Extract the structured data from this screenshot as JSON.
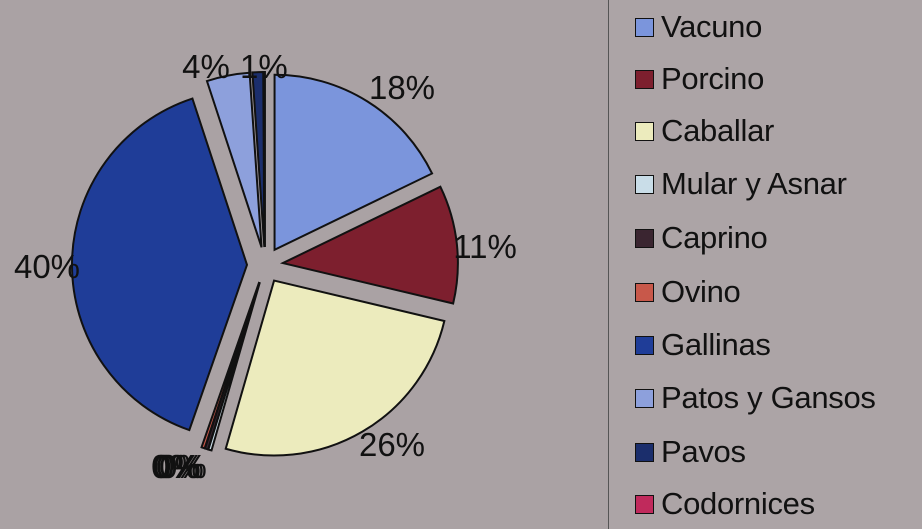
{
  "chart_data": {
    "type": "pie",
    "exploded": true,
    "legend_position": "right",
    "slices": [
      {
        "name": "Vacuno",
        "value": 18,
        "label": "18%",
        "color": "#7b95dc"
      },
      {
        "name": "Porcino",
        "value": 11,
        "label": "11%",
        "color": "#7d1f2e"
      },
      {
        "name": "Caballar",
        "value": 26,
        "label": "26%",
        "color": "#ecebbd"
      },
      {
        "name": "Mular y Asnar",
        "value": 0.3,
        "label": "0%",
        "color": "#c9dde8"
      },
      {
        "name": "Caprino",
        "value": 0.3,
        "label": "0%",
        "color": "#3a2530"
      },
      {
        "name": "Ovino",
        "value": 0.3,
        "label": "0%",
        "color": "#c8584a"
      },
      {
        "name": "Gallinas",
        "value": 40,
        "label": "40%",
        "color": "#1f3d98"
      },
      {
        "name": "Patos y Gansos",
        "value": 4,
        "label": "4%",
        "color": "#8da0dc"
      },
      {
        "name": "Pavos",
        "value": 1,
        "label": "1%",
        "color": "#1b2e6c"
      },
      {
        "name": "Codornices",
        "value": 0.1,
        "label": "0%",
        "color": "#c02a5c"
      }
    ]
  },
  "legend": {
    "items": [
      {
        "label": "Vacuno",
        "color": "#7b95dc"
      },
      {
        "label": "Porcino",
        "color": "#7d1f2e"
      },
      {
        "label": "Caballar",
        "color": "#ecebbd"
      },
      {
        "label": "Mular y Asnar",
        "color": "#c9dde8"
      },
      {
        "label": "Caprino",
        "color": "#3a2530"
      },
      {
        "label": "Ovino",
        "color": "#c8584a"
      },
      {
        "label": "Gallinas",
        "color": "#1f3d98"
      },
      {
        "label": "Patos y Gansos",
        "color": "#8da0dc"
      },
      {
        "label": "Pavos",
        "color": "#1b2e6c"
      },
      {
        "label": "Codornices",
        "color": "#c02a5c"
      }
    ]
  }
}
